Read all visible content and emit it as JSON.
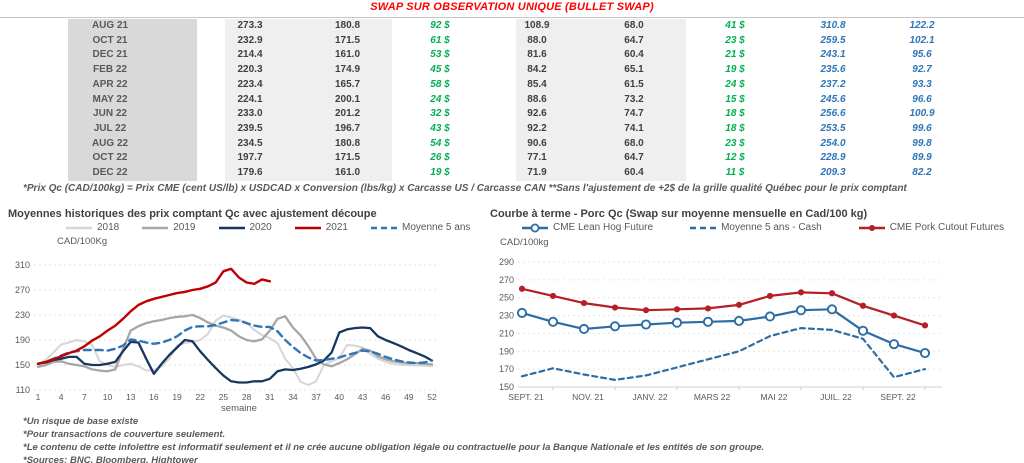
{
  "header": {
    "title": "SWAP SUR OBSERVATION UNIQUE (BULLET SWAP)"
  },
  "colors": {
    "title_red": "#FF0000",
    "swap_green": "#00B050",
    "qc_blue": "#2E75B6",
    "line_2018": "#D6D6D6",
    "line_2019": "#A6A6A6",
    "line_2020": "#17375E",
    "line_2021": "#C00000",
    "line_moyenne": "#2E75B6",
    "right_blue": "#2E6DA4",
    "right_red": "#B42025"
  },
  "table": {
    "rows": [
      {
        "label": "AUG 21",
        "values": [
          "273.3",
          "180.8",
          "92 $",
          "108.9",
          "68.0",
          "41 $",
          "310.8",
          "122.2"
        ]
      },
      {
        "label": "OCT 21",
        "values": [
          "232.9",
          "171.5",
          "61 $",
          "88.0",
          "64.7",
          "23 $",
          "259.5",
          "102.1"
        ]
      },
      {
        "label": "DEC 21",
        "values": [
          "214.4",
          "161.0",
          "53 $",
          "81.6",
          "60.4",
          "21 $",
          "243.1",
          "95.6"
        ]
      },
      {
        "label": "FEB 22",
        "values": [
          "220.3",
          "174.9",
          "45 $",
          "84.2",
          "65.1",
          "19 $",
          "235.6",
          "92.7"
        ]
      },
      {
        "label": "APR 22",
        "values": [
          "223.4",
          "165.7",
          "58 $",
          "85.4",
          "61.5",
          "24 $",
          "237.2",
          "93.3"
        ]
      },
      {
        "label": "MAY 22",
        "values": [
          "224.1",
          "200.1",
          "24 $",
          "88.6",
          "73.2",
          "15 $",
          "245.6",
          "96.6"
        ]
      },
      {
        "label": "JUN 22",
        "values": [
          "233.0",
          "201.2",
          "32 $",
          "92.6",
          "74.7",
          "18 $",
          "256.6",
          "100.9"
        ]
      },
      {
        "label": "JUL 22",
        "values": [
          "239.5",
          "196.7",
          "43 $",
          "92.2",
          "74.1",
          "18 $",
          "253.5",
          "99.6"
        ]
      },
      {
        "label": "AUG 22",
        "values": [
          "234.5",
          "180.8",
          "54 $",
          "90.6",
          "68.0",
          "23 $",
          "254.0",
          "99.8"
        ]
      },
      {
        "label": "OCT 22",
        "values": [
          "197.7",
          "171.5",
          "26 $",
          "77.1",
          "64.7",
          "12 $",
          "228.9",
          "89.9"
        ]
      },
      {
        "label": "DEC 22",
        "values": [
          "179.6",
          "161.0",
          "19 $",
          "71.9",
          "60.4",
          "11 $",
          "209.3",
          "82.2"
        ]
      }
    ],
    "footnote": "*Prix Qc (CAD/100kg) = Prix CME (cent US/lb) x USDCAD x Conversion (lbs/kg) x Carcasse US / Carcasse CAN **Sans l'ajustement de +2$ de la grille qualité Québec pour le prix comptant"
  },
  "chart_data": [
    {
      "type": "line",
      "title": "Moyennes historiques des prix comptant Qc avec ajustement découpe",
      "ylabel": "CAD/100Kg",
      "xlabel": "semaine",
      "ylim": [
        110,
        310
      ],
      "yticks": [
        110,
        150,
        190,
        230,
        270,
        310
      ],
      "xticks": [
        1,
        4,
        7,
        10,
        13,
        16,
        19,
        22,
        25,
        28,
        31,
        34,
        37,
        40,
        43,
        46,
        49,
        52
      ],
      "grid": "horizontal-dotted",
      "legend_position": "top",
      "series": [
        {
          "name": "2018",
          "color": "#D6D6D6",
          "width": 2,
          "values": [
            150,
            158,
            170,
            183,
            186,
            190,
            188,
            182,
            156,
            150,
            147,
            150,
            152,
            148,
            141,
            142,
            148,
            160,
            181,
            185,
            187,
            190,
            200,
            221,
            229,
            226,
            222,
            218,
            206,
            198,
            193,
            185,
            160,
            145,
            123,
            118,
            124,
            150,
            156,
            161,
            182,
            181,
            178,
            168,
            160,
            155,
            152,
            150,
            150,
            149,
            149,
            148
          ]
        },
        {
          "name": "2019",
          "color": "#A6A6A6",
          "width": 2.3,
          "values": [
            147,
            150,
            155,
            156,
            152,
            150,
            148,
            143,
            141,
            140,
            143,
            175,
            205,
            212,
            217,
            220,
            222,
            225,
            227,
            228,
            230,
            225,
            218,
            213,
            210,
            205,
            196,
            190,
            188,
            191,
            205,
            224,
            228,
            210,
            197,
            180,
            160,
            151,
            148,
            153,
            159,
            167,
            176,
            173,
            164,
            159,
            156,
            154,
            153,
            153,
            152,
            151
          ]
        },
        {
          "name": "2020",
          "color": "#17375E",
          "width": 2.3,
          "values": [
            152,
            154,
            158,
            160,
            163,
            163,
            152,
            150,
            150,
            152,
            155,
            172,
            187,
            186,
            160,
            136,
            152,
            166,
            178,
            190,
            188,
            172,
            158,
            145,
            133,
            124,
            122,
            122,
            124,
            124,
            128,
            140,
            143,
            142,
            144,
            147,
            151,
            157,
            170,
            202,
            207,
            209,
            210,
            209,
            196,
            190,
            185,
            180,
            174,
            169,
            164,
            157
          ]
        },
        {
          "name": "Moyenne 5 ans",
          "color": "#2E75B6",
          "width": 2.4,
          "dash": "7,5",
          "values": [
            152,
            155,
            160,
            165,
            170,
            172,
            174,
            174,
            174,
            173,
            176,
            181,
            191,
            189,
            186,
            184,
            186,
            190,
            196,
            205,
            211,
            212,
            212,
            214,
            218,
            222,
            221,
            217,
            213,
            211,
            211,
            204,
            190,
            179,
            169,
            162,
            157,
            158,
            160,
            162,
            166,
            169,
            173,
            172,
            168,
            163,
            159,
            156,
            154,
            153,
            154,
            157
          ]
        },
        {
          "name": "2021",
          "color": "#C00000",
          "width": 2.4,
          "values": [
            152,
            155,
            159,
            164,
            169,
            173,
            180,
            189,
            196,
            205,
            213,
            224,
            236,
            246,
            252,
            256,
            259,
            262,
            265,
            267,
            270,
            272,
            276,
            282,
            300,
            304,
            290,
            282,
            280,
            287,
            284
          ]
        }
      ],
      "legend_order": [
        "2018",
        "2019",
        "2020",
        "2021",
        "Moyenne 5 ans"
      ]
    },
    {
      "type": "line",
      "title": "Courbe à terme - Porc Qc (Swap sur moyenne mensuelle en Cad/100 kg)",
      "ylabel": "CAD/100kg",
      "ylim": [
        150,
        290
      ],
      "yticks": [
        150,
        170,
        190,
        210,
        230,
        250,
        270,
        290
      ],
      "xtick_labels": [
        "SEPT. 21",
        "NOV. 21",
        "JANV. 22",
        "MARS 22",
        "MAI 22",
        "JUIL. 22",
        "SEPT. 22"
      ],
      "xtick_positions": [
        0,
        2,
        4,
        6,
        8,
        10,
        12
      ],
      "grid": "horizontal-dotted",
      "legend_position": "top",
      "series": [
        {
          "name": "CME Lean Hog Future",
          "color": "#2E6DA4",
          "width": 2.2,
          "marker": "open",
          "values": [
            233,
            223,
            215,
            218,
            220,
            222,
            223,
            224,
            229,
            236,
            237,
            213,
            198,
            188
          ]
        },
        {
          "name": "Moyenne 5 ans - Cash",
          "color": "#2E6DA4",
          "width": 2.2,
          "dash": "5,4",
          "values": [
            162,
            171,
            164,
            158,
            163,
            172,
            181,
            190,
            207,
            216,
            214,
            204,
            161,
            170
          ]
        },
        {
          "name": "CME Pork Cutout Futures",
          "color": "#B42025",
          "width": 2.2,
          "marker": "filled",
          "values": [
            260,
            252,
            244,
            239,
            236,
            237,
            238,
            242,
            252,
            256,
            255,
            241,
            230,
            219
          ]
        }
      ]
    }
  ],
  "footnotes": [
    "*Un risque de base existe",
    "*Pour transactions de couverture seulement.",
    "*Le contenu de cette infolettre est informatif seulement et il ne crée aucune obligation légale ou contractuelle pour la Banque Nationale et les entités de son groupe.",
    "*Sources: BNC, Bloomberg, Hightower"
  ]
}
